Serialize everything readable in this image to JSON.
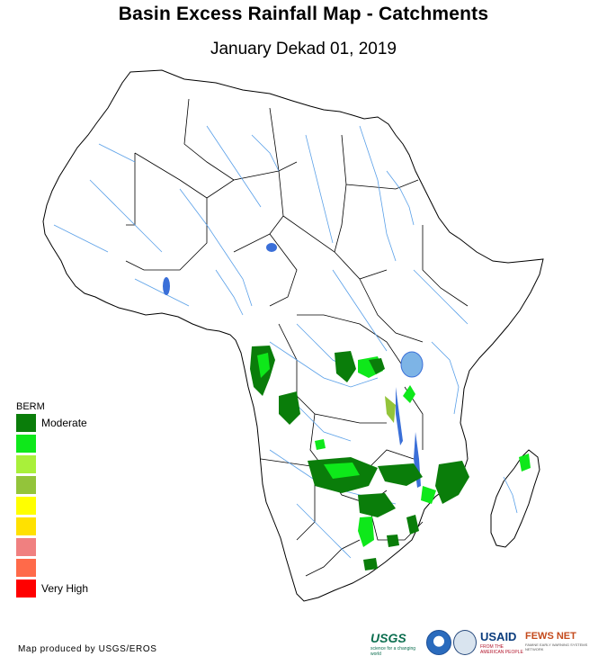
{
  "title": "Basin Excess Rainfall Map - Catchments",
  "subtitle": "January Dekad 01, 2019",
  "legend": {
    "title": "BERM",
    "items": [
      {
        "label": "Moderate",
        "color": "#0a7d0a"
      },
      {
        "label": "",
        "color": "#0ee81a"
      },
      {
        "label": "",
        "color": "#a9f03a"
      },
      {
        "label": "",
        "color": "#93c43a"
      },
      {
        "label": "",
        "color": "#ffff00"
      },
      {
        "label": "",
        "color": "#ffe100"
      },
      {
        "label": "",
        "color": "#f08080"
      },
      {
        "label": "",
        "color": "#ff6a4a"
      },
      {
        "label": "Very High",
        "color": "#ff0000"
      }
    ]
  },
  "credit": "Map produced by USGS/EROS",
  "logos": {
    "usgs": "USGS",
    "usgs_tagline": "science for a changing world",
    "usaid": "USAID",
    "usaid_tagline": "FROM THE AMERICAN PEOPLE",
    "fews": "FEWS NET",
    "fews_tagline": "FAMINE EARLY WARNING SYSTEMS NETWORK"
  },
  "colors": {
    "river": "#5aa0e8",
    "lake": "#3a6fd8",
    "border": "#000000",
    "moderate": "#0a7d0a",
    "high_green": "#0ee81a",
    "light_green": "#a9f03a"
  }
}
